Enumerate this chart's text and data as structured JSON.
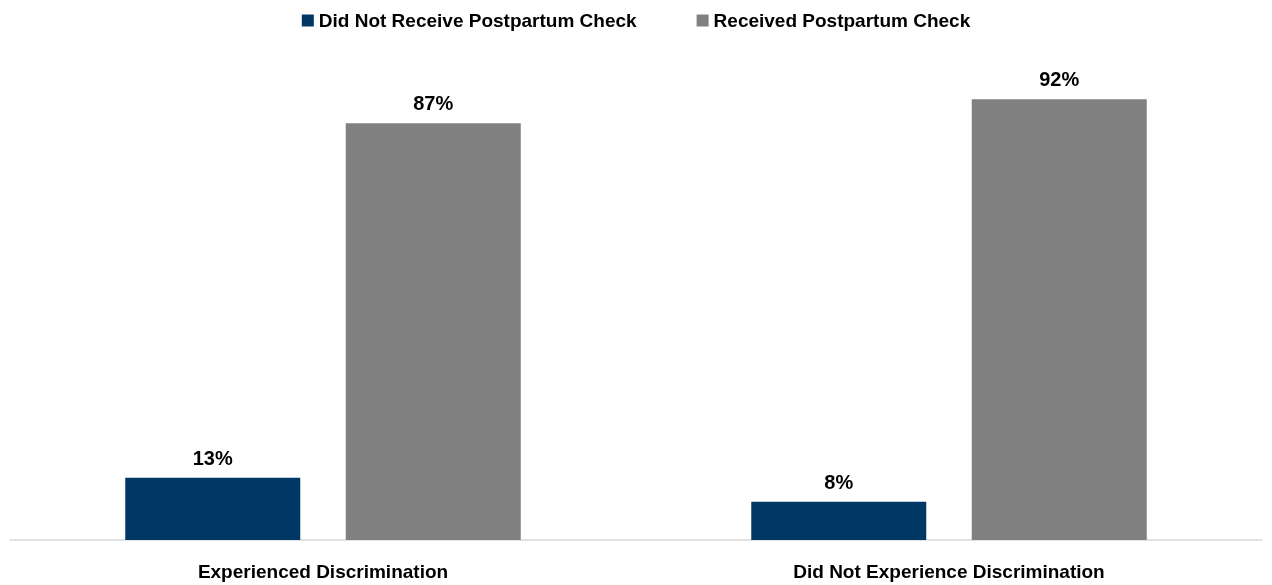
{
  "chart_data": {
    "type": "bar",
    "categories": [
      "Experienced Discrimination",
      "Did Not Experience Discrimination"
    ],
    "series": [
      {
        "name": "Did Not Receive Postpartum Check",
        "color": "#003764",
        "values": [
          13,
          8
        ],
        "value_labels": [
          "13%",
          "8%"
        ]
      },
      {
        "name": "Received Postpartum Check",
        "color": "#808080",
        "values": [
          87,
          92
        ],
        "value_labels": [
          "87%",
          "92%"
        ]
      }
    ],
    "legend": "top",
    "tick_labels": "x"
  }
}
